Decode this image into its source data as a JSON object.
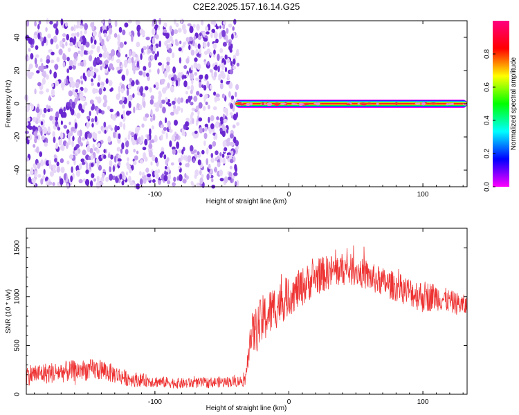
{
  "title": "C2E2.2025.157.16.14.G25",
  "chart_data": [
    {
      "type": "heatmap",
      "xlabel": "Height of straight line (km)",
      "ylabel": "Frequency (Hz)",
      "xlim": [
        -196,
        133
      ],
      "ylim": [
        -50,
        50
      ],
      "x_ticks": [
        -100,
        0,
        100
      ],
      "y_ticks": [
        40,
        20,
        0,
        -20,
        -40
      ],
      "noise_region_x": [
        -196,
        -40
      ],
      "line_region_x": [
        -40,
        133
      ],
      "line_frequency": 0,
      "colorbar": {
        "label": "Normalized spectral amplitude",
        "range": [
          0.0,
          1.0
        ],
        "ticks": [
          "0.0",
          "0.2",
          "0.4",
          "0.6",
          "0.8"
        ],
        "colors": [
          "#ff00ff",
          "#0000ff",
          "#00ffff",
          "#00ff00",
          "#ffff00",
          "#ff0000",
          "#ff0080"
        ]
      },
      "grid": false
    },
    {
      "type": "line",
      "xlabel": "Height of straight line (km)",
      "ylabel": "SNR (10 * v/v)",
      "xlim": [
        -196,
        133
      ],
      "ylim": [
        0,
        1700
      ],
      "x_ticks": [
        -100,
        0,
        100
      ],
      "y_ticks": [
        0,
        500,
        1000,
        1500
      ],
      "line_color": "#ee3333",
      "profile_x": [
        -196,
        -150,
        -140,
        -120,
        -100,
        -80,
        -60,
        -40,
        -32,
        -30,
        -20,
        -10,
        0,
        10,
        20,
        30,
        40,
        50,
        60,
        70,
        80,
        90,
        100,
        110,
        120,
        133
      ],
      "profile_y": [
        200,
        250,
        250,
        160,
        130,
        110,
        120,
        130,
        140,
        550,
        750,
        900,
        1000,
        1100,
        1200,
        1250,
        1280,
        1270,
        1200,
        1150,
        1100,
        1050,
        1000,
        1000,
        950,
        900
      ],
      "noise_amplitude": [
        110,
        110,
        110,
        80,
        60,
        55,
        55,
        55,
        60,
        220,
        260,
        240,
        200,
        200,
        190,
        180,
        170,
        160,
        150,
        150,
        150,
        150,
        170,
        140,
        120,
        110
      ],
      "grid": false
    }
  ]
}
